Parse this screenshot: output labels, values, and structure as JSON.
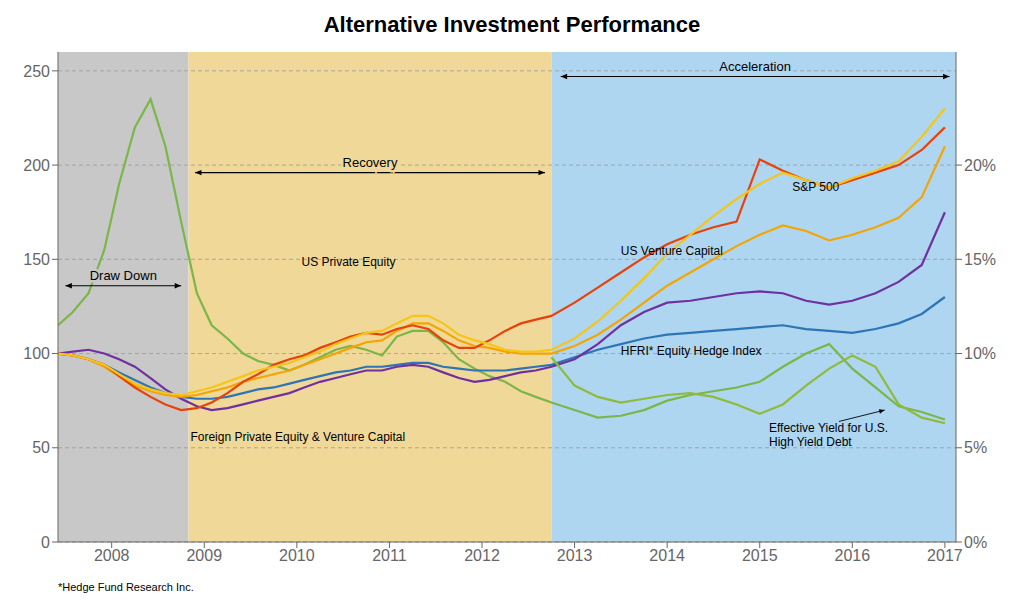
{
  "chart_data": {
    "type": "line",
    "title": "Alternative Investment Performance",
    "subtitle": "*Hedge Fund Research Inc.",
    "x": [
      2007.42,
      2007.58,
      2007.75,
      2007.92,
      2008.08,
      2008.25,
      2008.42,
      2008.58,
      2008.75,
      2008.92,
      2009.08,
      2009.25,
      2009.42,
      2009.58,
      2009.75,
      2009.92,
      2010.08,
      2010.25,
      2010.42,
      2010.58,
      2010.75,
      2010.92,
      2011.08,
      2011.25,
      2011.42,
      2011.58,
      2011.75,
      2011.92,
      2012.08,
      2012.25,
      2012.42,
      2012.58,
      2012.75,
      2013.0,
      2013.25,
      2013.5,
      2013.75,
      2014.0,
      2014.25,
      2014.5,
      2014.75,
      2015.0,
      2015.25,
      2015.5,
      2015.75,
      2016.0,
      2016.25,
      2016.5,
      2016.75,
      2017.0
    ],
    "xlim": [
      2007.42,
      2017.12
    ],
    "xticks": [
      2008,
      2009,
      2010,
      2011,
      2012,
      2013,
      2014,
      2015,
      2016,
      2017
    ],
    "ylim": [
      0,
      260
    ],
    "yticks": [
      0,
      50,
      100,
      150,
      200,
      250
    ],
    "y2lim": [
      0,
      0.26
    ],
    "y2ticks": [
      {
        "value": 0,
        "label": "0%"
      },
      {
        "value": 0.05,
        "label": "5%"
      },
      {
        "value": 0.1,
        "label": "10%"
      },
      {
        "value": 0.15,
        "label": "15%"
      },
      {
        "value": 0.2,
        "label": "20%"
      }
    ],
    "grid": true,
    "series": [
      {
        "color": "#7ab648",
        "values": [
          115,
          122,
          132,
          155,
          190,
          220,
          235,
          210,
          170,
          132,
          115,
          108,
          100,
          96,
          94,
          91,
          94,
          98,
          102,
          104,
          102,
          99,
          109,
          112,
          112,
          106,
          97,
          92,
          88,
          85,
          80,
          77,
          74,
          70,
          66,
          67,
          70,
          75,
          78,
          80,
          82,
          85,
          93,
          100,
          105,
          92,
          82,
          72,
          69,
          65
        ]
      },
      {
        "color": "#2e75b6",
        "values": [
          100,
          99,
          97,
          94,
          90,
          86,
          82,
          79,
          77,
          76,
          76,
          77,
          79,
          81,
          82,
          84,
          86,
          88,
          90,
          91,
          93,
          93,
          94,
          95,
          95,
          93,
          92,
          91,
          91,
          91,
          92,
          93,
          94,
          98,
          102,
          105,
          108,
          110,
          111,
          112,
          113,
          114,
          115,
          113,
          112,
          111,
          113,
          116,
          121,
          130
        ]
      },
      {
        "color": "#7030a0",
        "values": [
          100,
          101,
          102,
          100,
          97,
          93,
          87,
          81,
          76,
          72,
          70,
          71,
          73,
          75,
          77,
          79,
          82,
          85,
          87,
          89,
          91,
          91,
          93,
          94,
          93,
          90,
          87,
          85,
          86,
          88,
          90,
          91,
          93,
          97,
          105,
          115,
          122,
          127,
          128,
          130,
          132,
          133,
          132,
          128,
          126,
          128,
          132,
          138,
          147,
          175
        ]
      },
      {
        "color": "#f5a500",
        "values": [
          100,
          99,
          97,
          93,
          88,
          83,
          80,
          78,
          77,
          78,
          80,
          82,
          85,
          87,
          89,
          91,
          94,
          97,
          100,
          103,
          106,
          107,
          112,
          116,
          116,
          112,
          107,
          104,
          103,
          101,
          100,
          100,
          100,
          104,
          110,
          118,
          127,
          136,
          143,
          150,
          157,
          163,
          168,
          165,
          160,
          163,
          167,
          172,
          183,
          210
        ]
      },
      {
        "color": "#e8420a",
        "values": [
          100,
          99,
          97,
          94,
          88,
          82,
          77,
          73,
          70,
          71,
          74,
          79,
          85,
          89,
          94,
          97,
          99,
          103,
          106,
          109,
          111,
          110,
          113,
          115,
          113,
          107,
          103,
          103,
          107,
          112,
          116,
          118,
          120,
          127,
          135,
          143,
          151,
          158,
          163,
          167,
          170,
          203,
          197,
          192,
          188,
          192,
          196,
          200,
          208,
          220
        ]
      },
      {
        "color": "#f5c518",
        "values": [
          100,
          99,
          97,
          94,
          89,
          84,
          81,
          79,
          78,
          80,
          82,
          85,
          88,
          91,
          93,
          95,
          98,
          101,
          105,
          108,
          111,
          112,
          116,
          120,
          120,
          116,
          110,
          107,
          105,
          102,
          101,
          101,
          102,
          108,
          117,
          128,
          140,
          153,
          163,
          173,
          182,
          190,
          196,
          192,
          188,
          193,
          197,
          202,
          215,
          230
        ]
      },
      {
        "color": "#8fba3c",
        "values": [
          null,
          null,
          null,
          null,
          null,
          null,
          null,
          null,
          null,
          null,
          null,
          null,
          null,
          null,
          null,
          null,
          null,
          null,
          null,
          null,
          null,
          null,
          null,
          null,
          null,
          null,
          null,
          null,
          null,
          null,
          null,
          null,
          98,
          83,
          77,
          74,
          76,
          78,
          79,
          77,
          73,
          68,
          73,
          83,
          92,
          99,
          93,
          73,
          66,
          63
        ]
      }
    ],
    "regions": [
      {
        "xstart": 2007.42,
        "xend": 2008.83,
        "color": "#c8c8c8"
      },
      {
        "xstart": 2008.83,
        "xend": 2012.75,
        "color": "#f0d898"
      },
      {
        "xstart": 2012.75,
        "xend": 2017.12,
        "color": "#aed6f1"
      }
    ],
    "annotations": [
      {
        "text": "Draw Down",
        "x0": 2007.5,
        "x1": 2008.75,
        "y": 136
      },
      {
        "text": "Recovery",
        "x0": 2008.9,
        "x1": 2012.68,
        "y": 196
      },
      {
        "text": "Acceleration",
        "x0": 2012.85,
        "x1": 2017.05,
        "y": 247
      },
      {
        "text": "US Venture Capital",
        "x": 2013.5,
        "y": 154
      },
      {
        "text": "S&P 500",
        "x": 2015.35,
        "y": 188
      },
      {
        "text": "US Private Equity",
        "x": 2010.05,
        "y": 148
      },
      {
        "text": "HFRI* Equity Hedge Index",
        "x": 2013.5,
        "y": 101
      },
      {
        "text": "Foreign Private Equity & Venture Capital",
        "x": 2008.85,
        "y": 55
      },
      {
        "text": "Effective Yield for U.S.\nHigh Yield Debt",
        "x": 2015.1,
        "y": 56,
        "arrow_to": [
          2016.35,
          70
        ]
      }
    ]
  }
}
